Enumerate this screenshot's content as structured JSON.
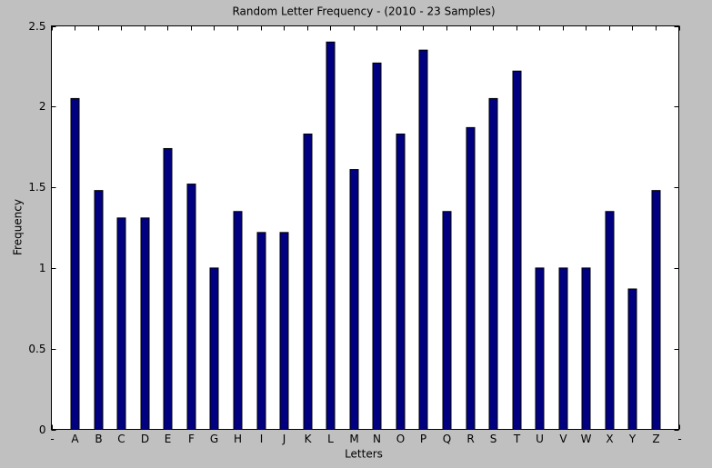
{
  "chart_data": {
    "type": "bar",
    "title": "Random Letter Frequency - (2010 - 23 Samples)",
    "x_label": "Letters",
    "y_label": "Frequency",
    "categories": [
      "-",
      "A",
      "B",
      "C",
      "D",
      "E",
      "F",
      "G",
      "H",
      "I",
      "J",
      "K",
      "L",
      "M",
      "N",
      "O",
      "P",
      "Q",
      "R",
      "S",
      "T",
      "U",
      "V",
      "W",
      "X",
      "Y",
      "Z",
      "-"
    ],
    "values": [
      null,
      2.05,
      1.48,
      1.31,
      1.31,
      1.74,
      1.52,
      1.0,
      1.35,
      1.22,
      1.22,
      1.83,
      2.4,
      1.61,
      2.27,
      1.83,
      2.35,
      1.35,
      1.87,
      2.05,
      2.22,
      1.0,
      1.0,
      1.0,
      1.35,
      0.87,
      1.48,
      null
    ],
    "color": "#000080",
    "ylim": [
      0,
      2.5
    ],
    "yticks": [
      0,
      0.5,
      1,
      1.5,
      2,
      2.5
    ],
    "grid": false
  }
}
